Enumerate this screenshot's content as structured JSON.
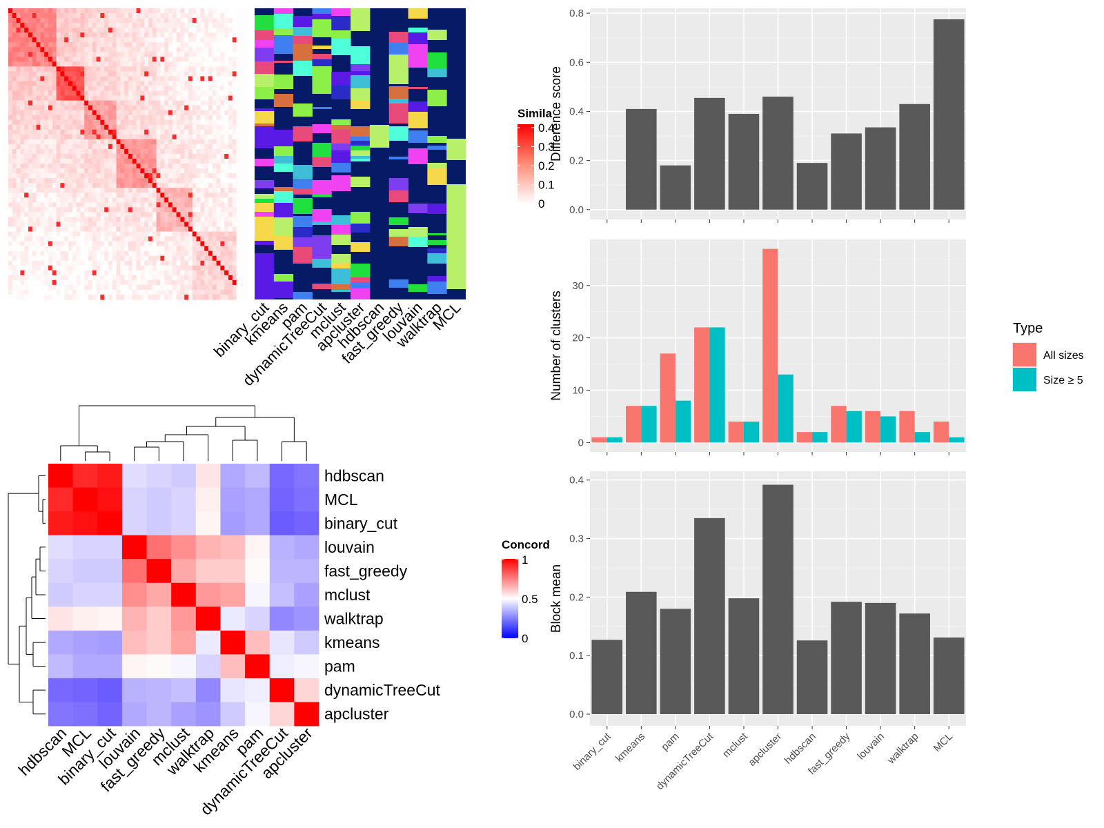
{
  "colors": {
    "panel_bg": "#EBEBEB",
    "grid": "#FFFFFF",
    "bar": "#595959",
    "all_sizes": "#F8766D",
    "size_ge5": "#00BFC4",
    "heat_high": "#FF0000",
    "heat_low": "#0000FF",
    "cluster_bg": "#061A66"
  },
  "chart_data": [
    {
      "type": "heatmap",
      "id": "similarity-heatmap",
      "legend_title": "Simila",
      "legend_ticks": [
        "0",
        "0.1",
        "0.2",
        "0.3",
        "0.4"
      ],
      "scale": {
        "low": "#FFFFFF",
        "high": "#FF0000",
        "range": [
          0,
          0.42
        ]
      }
    },
    {
      "type": "heatmap",
      "id": "cluster-assignment-annotation",
      "columns": [
        "binary_cut",
        "kmeans",
        "pam",
        "dynamicTreeCut",
        "mclust",
        "apcluster",
        "hdbscan",
        "fast_greedy",
        "louvain",
        "walktrap",
        "MCL"
      ]
    },
    {
      "type": "heatmap",
      "id": "concordance-heatmap",
      "legend_title": "Concord",
      "legend_ticks": [
        "0",
        "0.5",
        "1"
      ],
      "rows": [
        "hdbscan",
        "MCL",
        "binary_cut",
        "louvain",
        "fast_greedy",
        "mclust",
        "walktrap",
        "kmeans",
        "pam",
        "dynamicTreeCut",
        "apcluster"
      ],
      "columns": [
        "hdbscan",
        "MCL",
        "binary_cut",
        "louvain",
        "fast_greedy",
        "mclust",
        "walktrap",
        "kmeans",
        "pam",
        "dynamicTreeCut",
        "apcluster"
      ],
      "values": [
        [
          1.0,
          0.92,
          0.95,
          0.42,
          0.4,
          0.38,
          0.55,
          0.3,
          0.34,
          0.15,
          0.18
        ],
        [
          0.92,
          1.0,
          0.97,
          0.4,
          0.38,
          0.4,
          0.53,
          0.28,
          0.3,
          0.14,
          0.17
        ],
        [
          0.95,
          0.97,
          1.0,
          0.4,
          0.38,
          0.4,
          0.52,
          0.27,
          0.3,
          0.12,
          0.14
        ],
        [
          0.42,
          0.4,
          0.4,
          1.0,
          0.78,
          0.72,
          0.65,
          0.63,
          0.52,
          0.32,
          0.3
        ],
        [
          0.4,
          0.38,
          0.38,
          0.78,
          1.0,
          0.67,
          0.6,
          0.6,
          0.51,
          0.33,
          0.33
        ],
        [
          0.38,
          0.4,
          0.4,
          0.72,
          0.67,
          1.0,
          0.7,
          0.68,
          0.48,
          0.35,
          0.28
        ],
        [
          0.55,
          0.53,
          0.52,
          0.65,
          0.6,
          0.7,
          1.0,
          0.45,
          0.4,
          0.22,
          0.25
        ],
        [
          0.3,
          0.28,
          0.27,
          0.63,
          0.6,
          0.68,
          0.45,
          1.0,
          0.63,
          0.44,
          0.38
        ],
        [
          0.34,
          0.3,
          0.3,
          0.52,
          0.51,
          0.48,
          0.4,
          0.63,
          1.0,
          0.46,
          0.48
        ],
        [
          0.15,
          0.14,
          0.12,
          0.32,
          0.33,
          0.35,
          0.22,
          0.44,
          0.46,
          1.0,
          0.58
        ],
        [
          0.18,
          0.17,
          0.14,
          0.3,
          0.33,
          0.28,
          0.25,
          0.38,
          0.48,
          0.58,
          1.0
        ]
      ]
    },
    {
      "type": "bar",
      "id": "difference-score",
      "categories": [
        "binary_cut",
        "kmeans",
        "pam",
        "dynamicTreeCut",
        "mclust",
        "apcluster",
        "hdbscan",
        "fast_greedy",
        "louvain",
        "walktrap",
        "MCL"
      ],
      "values": [
        0.0,
        0.41,
        0.18,
        0.455,
        0.39,
        0.46,
        0.19,
        0.31,
        0.335,
        0.43,
        0.775
      ],
      "ylabel": "Difference score",
      "ylim": [
        -0.04,
        0.82
      ],
      "yticks": [
        0.0,
        0.2,
        0.4,
        0.6,
        0.8
      ],
      "ytick_labels": [
        "0.0",
        "0.2",
        "0.4",
        "0.6",
        "0.8"
      ]
    },
    {
      "type": "bar",
      "id": "number-of-clusters",
      "categories": [
        "binary_cut",
        "kmeans",
        "pam",
        "dynamicTreeCut",
        "mclust",
        "apcluster",
        "hdbscan",
        "fast_greedy",
        "louvain",
        "walktrap",
        "MCL"
      ],
      "series": [
        {
          "name": "All sizes",
          "values": [
            1,
            7,
            17,
            22,
            4,
            37,
            2,
            7,
            6,
            6,
            4
          ]
        },
        {
          "name": "Size ≥ 5",
          "values": [
            1,
            7,
            8,
            22,
            4,
            13,
            2,
            6,
            5,
            2,
            1
          ]
        }
      ],
      "ylabel": "Number of clusters",
      "ylim": [
        -1.8,
        38.8
      ],
      "yticks": [
        0,
        10,
        20,
        30
      ],
      "ytick_labels": [
        "0",
        "10",
        "20",
        "30"
      ],
      "legend_title": "Type",
      "legend_placement": "right"
    },
    {
      "type": "bar",
      "id": "block-mean",
      "categories": [
        "binary_cut",
        "kmeans",
        "pam",
        "dynamicTreeCut",
        "mclust",
        "apcluster",
        "hdbscan",
        "fast_greedy",
        "louvain",
        "walktrap",
        "MCL"
      ],
      "values": [
        0.127,
        0.209,
        0.18,
        0.335,
        0.198,
        0.392,
        0.126,
        0.192,
        0.19,
        0.172,
        0.131
      ],
      "ylabel": "Block mean",
      "ylim": [
        -0.02,
        0.415
      ],
      "yticks": [
        0.0,
        0.1,
        0.2,
        0.3,
        0.4
      ],
      "ytick_labels": [
        "0.0",
        "0.1",
        "0.2",
        "0.3",
        "0.4"
      ]
    }
  ]
}
